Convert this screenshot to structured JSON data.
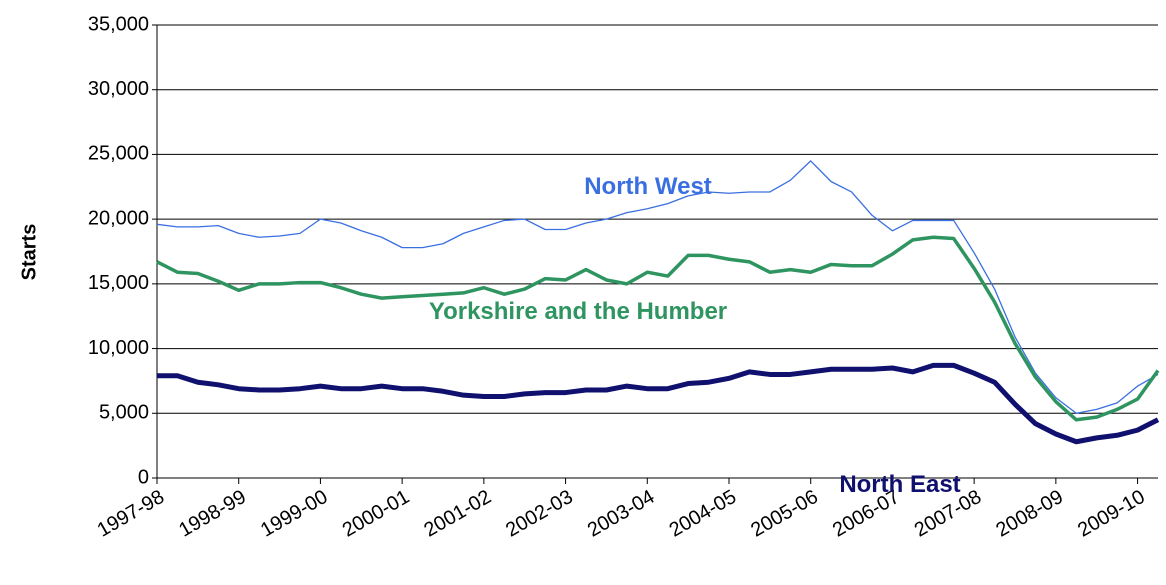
{
  "chart_data": {
    "type": "line",
    "y_label": "Starts",
    "categories": [
      "1997-98",
      null,
      null,
      null,
      "1998-99",
      null,
      null,
      null,
      "1999-00",
      null,
      null,
      null,
      "2000-01",
      null,
      null,
      null,
      "2001-02",
      null,
      null,
      null,
      "2002-03",
      null,
      null,
      null,
      "2003-04",
      null,
      null,
      null,
      "2004-05",
      null,
      null,
      null,
      "2005-06",
      null,
      null,
      null,
      "2006-07",
      null,
      null,
      null,
      "2007-08",
      null,
      null,
      null,
      "2008-09",
      null,
      null,
      null,
      "2009-10",
      null
    ],
    "series": [
      {
        "name": "North West",
        "color": "#3a6fe0",
        "values": [
          19600,
          19400,
          19400,
          19500,
          18900,
          18600,
          18700,
          18900,
          20000,
          19700,
          19100,
          18600,
          17800,
          17800,
          18100,
          18900,
          19400,
          19900,
          20000,
          19200,
          19200,
          19700,
          20000,
          20500,
          20800,
          21200,
          21800,
          22100,
          22000,
          22100,
          22100,
          23000,
          24500,
          22900,
          22100,
          20300,
          19100,
          19900,
          19900,
          19900,
          17400,
          14600,
          10900,
          8100,
          6200,
          5000,
          5300,
          5800,
          7100,
          8000
        ]
      },
      {
        "name": "Yorkshire and the Humber",
        "color": "#2e9460",
        "values": [
          16700,
          15900,
          15800,
          15200,
          14500,
          15000,
          15000,
          15100,
          15100,
          14700,
          14200,
          13900,
          14000,
          14100,
          14200,
          14300,
          14700,
          14200,
          14600,
          15400,
          15300,
          16100,
          15300,
          15000,
          15900,
          15600,
          17200,
          17200,
          16900,
          16700,
          15900,
          16100,
          15900,
          16500,
          16400,
          16400,
          17300,
          18400,
          18600,
          18500,
          16200,
          13600,
          10400,
          7800,
          5900,
          4500,
          4700,
          5300,
          6100,
          8300
        ]
      },
      {
        "name": "North East",
        "color": "#10106e",
        "values": [
          7900,
          7900,
          7400,
          7200,
          6900,
          6800,
          6800,
          6900,
          7100,
          6900,
          6900,
          7100,
          6900,
          6900,
          6700,
          6400,
          6300,
          6300,
          6500,
          6600,
          6600,
          6800,
          6800,
          7100,
          6900,
          6900,
          7300,
          7400,
          7700,
          8200,
          8000,
          8000,
          8200,
          8400,
          8400,
          8400,
          8500,
          8200,
          8700,
          8700,
          8100,
          7400,
          5700,
          4200,
          3400,
          2800,
          3100,
          3300,
          3700,
          4500
        ]
      }
    ],
    "ylim": [
      0,
      35000
    ],
    "yticks": [
      0,
      {
        "value": 5000,
        "label": "5,000"
      },
      {
        "value": 10000,
        "label": "10,000"
      },
      {
        "value": 15000,
        "label": "15,000"
      },
      {
        "value": 20000,
        "label": "20,000"
      },
      {
        "value": 25000,
        "label": "25,000"
      },
      {
        "value": 30000,
        "label": "30,000"
      },
      {
        "value": 35000,
        "label": "35,000"
      }
    ],
    "grid": true
  }
}
